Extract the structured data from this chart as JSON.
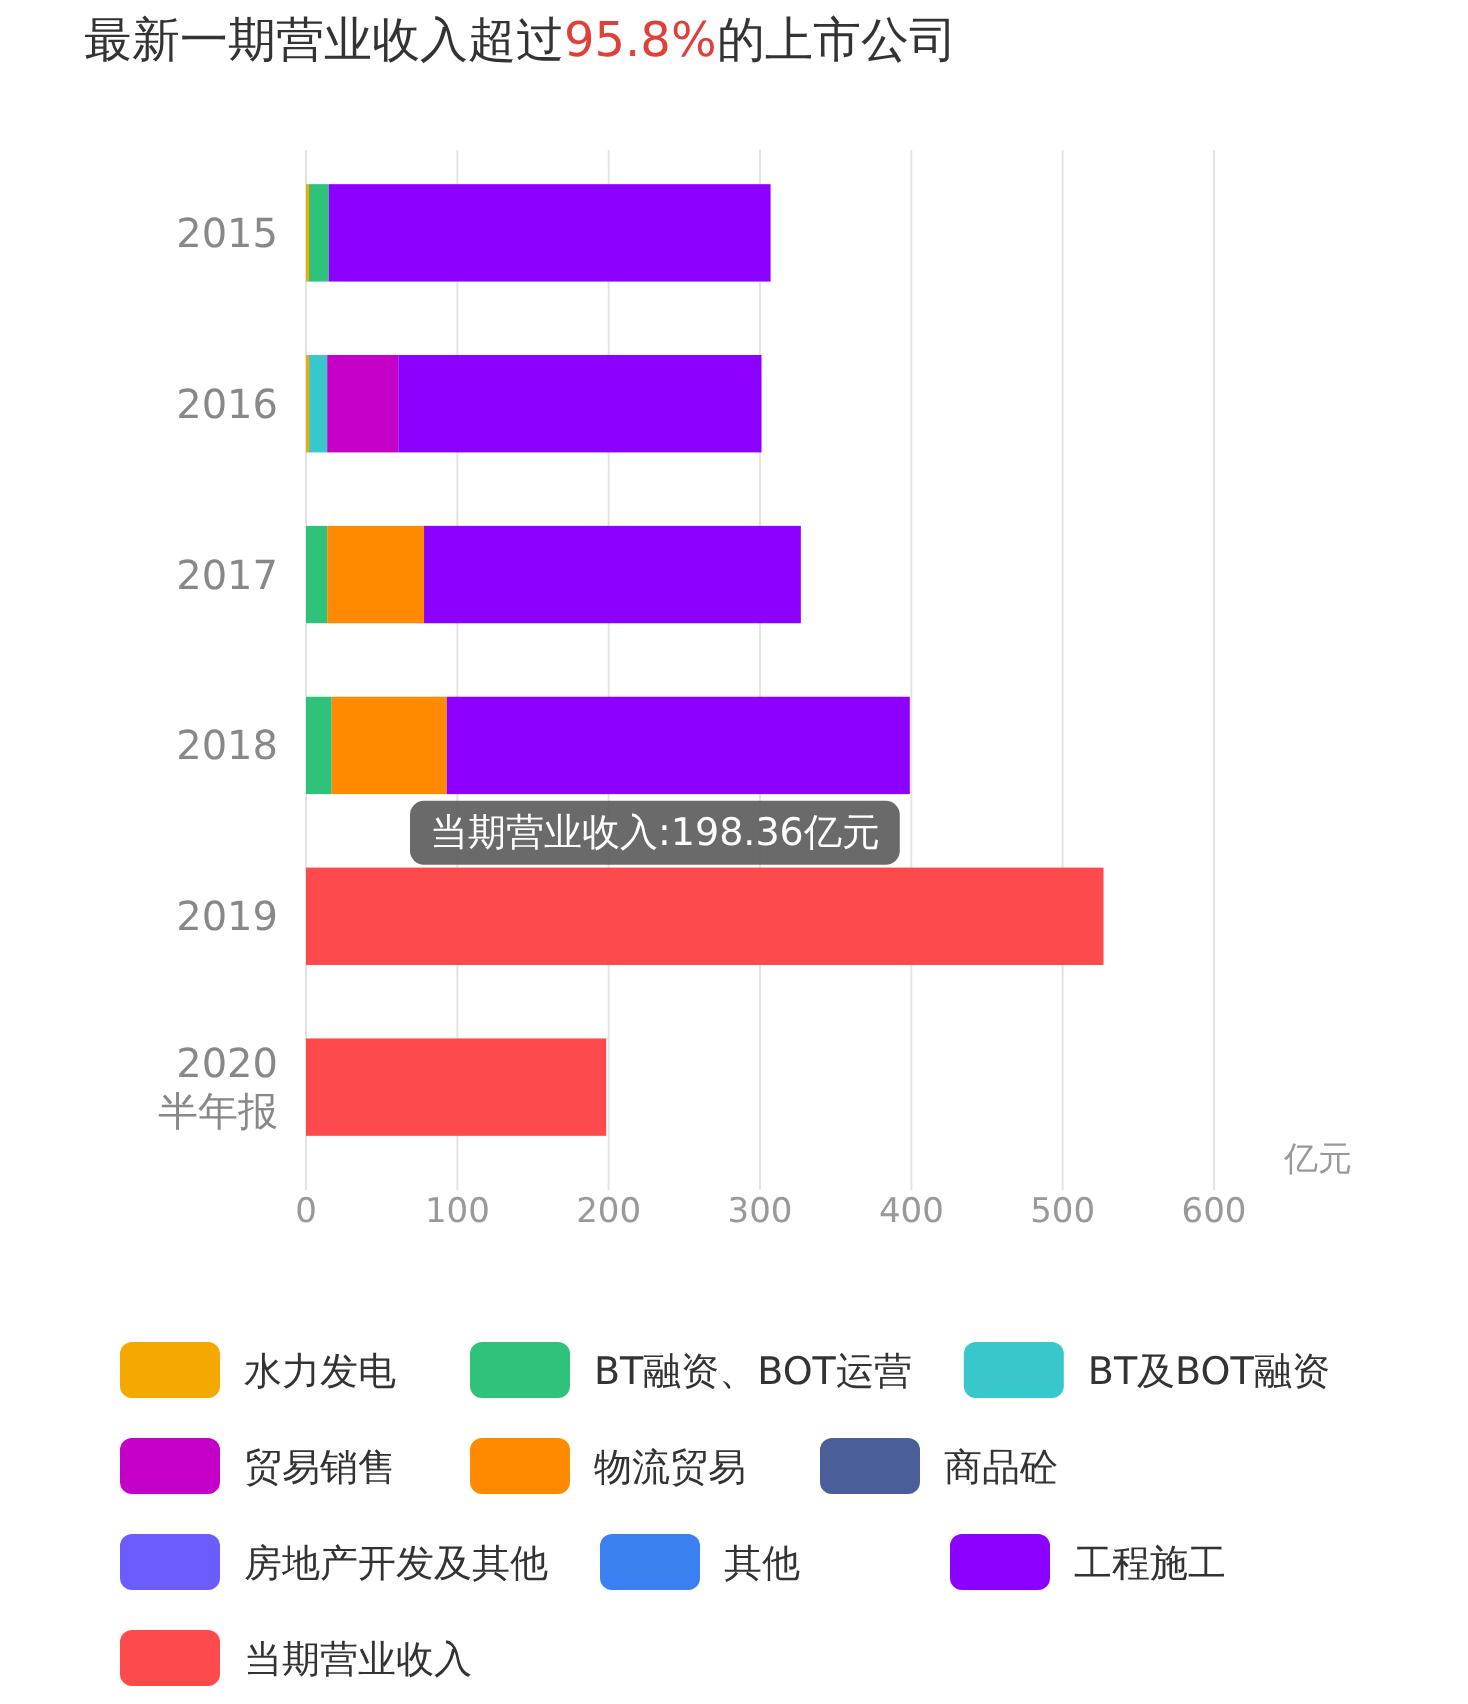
{
  "chart_data": {
    "type": "bar",
    "orientation": "horizontal",
    "stacked": true,
    "title": "最新一期营业收入超过95.8%的上市公司",
    "xlabel": "亿元",
    "categories": [
      "2015",
      "2016",
      "2017",
      "2018",
      "2019",
      "2020\n半年报"
    ],
    "series": [
      {
        "name": "水力发电",
        "color": "#f5a800",
        "values": [
          2,
          2,
          null,
          null,
          null,
          null
        ]
      },
      {
        "name": "BT融资、BOT运营",
        "color": "#2ec27a",
        "values": [
          13,
          null,
          14,
          17,
          null,
          null
        ]
      },
      {
        "name": "BT及BOT融资",
        "color": "#38c8cc",
        "values": [
          null,
          12,
          null,
          null,
          null,
          null
        ]
      },
      {
        "name": "贸易销售",
        "color": "#c400c8",
        "values": [
          null,
          47,
          null,
          null,
          null,
          null
        ]
      },
      {
        "name": "物流贸易",
        "color": "#ff8a00",
        "values": [
          null,
          null,
          64,
          76,
          null,
          null
        ]
      },
      {
        "name": "商品砼",
        "color": "#4a5f99",
        "values": [
          null,
          null,
          null,
          null,
          null,
          null
        ]
      },
      {
        "name": "房地产开发及其他",
        "color": "#6b5cff",
        "values": [
          null,
          null,
          null,
          null,
          null,
          null
        ]
      },
      {
        "name": "其他",
        "color": "#3a80f0",
        "values": [
          null,
          null,
          null,
          null,
          null,
          null
        ]
      },
      {
        "name": "工程施工",
        "color": "#8b00ff",
        "values": [
          292,
          240,
          249,
          306,
          null,
          null
        ]
      },
      {
        "name": "当期营业收入",
        "color": "#ff4a4d",
        "values": [
          null,
          null,
          null,
          null,
          527,
          198.36
        ]
      }
    ],
    "xlim": [
      0,
      600
    ],
    "xticks": [
      0,
      100,
      200,
      300,
      400,
      500,
      600
    ],
    "grid": "x",
    "legend": "bottom",
    "annotations": [
      "当期营业收入:198.36亿元"
    ]
  }
}
